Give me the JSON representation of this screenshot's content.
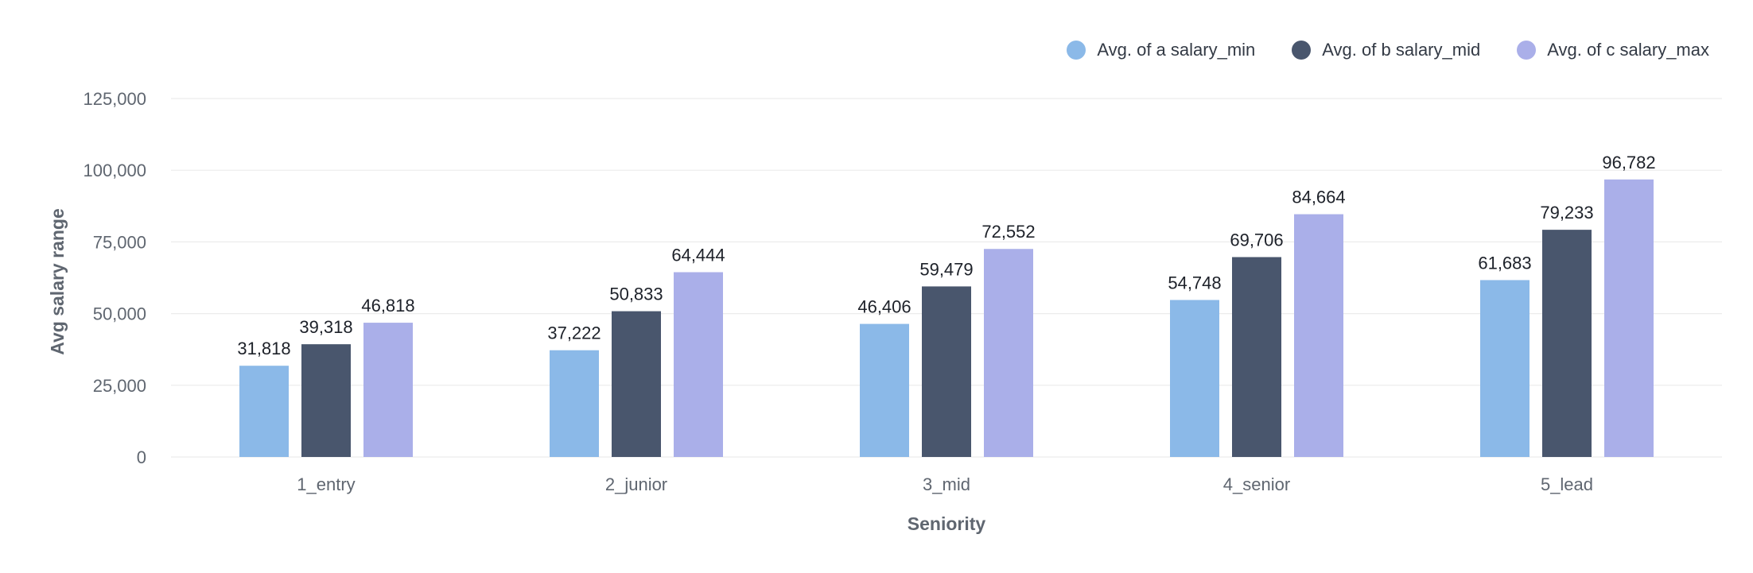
{
  "chart_data": {
    "type": "bar",
    "xlabel": "Seniority",
    "ylabel": "Avg salary range",
    "ylim": [
      0,
      125000
    ],
    "yticks": [
      "0",
      "25,000",
      "50,000",
      "75,000",
      "100,000",
      "125,000"
    ],
    "ytick_values": [
      0,
      25000,
      50000,
      75000,
      100000,
      125000
    ],
    "grid": true,
    "legend_position": "top-right",
    "categories": [
      "1_entry",
      "2_junior",
      "3_mid",
      "4_senior",
      "5_lead"
    ],
    "series": [
      {
        "name": "Avg. of a salary_min",
        "color": "#8bb9e8",
        "values": [
          31818,
          37222,
          46406,
          54748,
          61683
        ],
        "labels": [
          "31,818",
          "37,222",
          "46,406",
          "54,748",
          "61,683"
        ]
      },
      {
        "name": "Avg. of b salary_mid",
        "color": "#49566d",
        "values": [
          39318,
          50833,
          59479,
          69706,
          79233
        ],
        "labels": [
          "39,318",
          "50,833",
          "59,479",
          "69,706",
          "79,233"
        ]
      },
      {
        "name": "Avg. of c salary_max",
        "color": "#aaafe9",
        "values": [
          46818,
          64444,
          72552,
          84664,
          96782
        ],
        "labels": [
          "46,818",
          "64,444",
          "72,552",
          "84,664",
          "96,782"
        ]
      }
    ]
  },
  "colors": {
    "axis_text": "#5f6670",
    "title_text": "#5f6670",
    "label_text": "#1d2129",
    "grid": "#ececec",
    "legend_text": "#333a45"
  }
}
